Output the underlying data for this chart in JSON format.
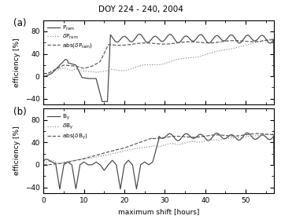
{
  "title": "DOY 224 - 240, 2004",
  "xlabel": "maximum shift [hours]",
  "ylabel": "efficiency [%]",
  "xlim": [
    0,
    57
  ],
  "ylim_a": [
    -50,
    100
  ],
  "ylim_b": [
    -50,
    100
  ],
  "yticks": [
    -40,
    0,
    40,
    80
  ],
  "xticks": [
    0,
    10,
    20,
    30,
    40,
    50
  ],
  "color_solid": "#444444",
  "color_dotted": "#888888",
  "color_dashed": "#555555",
  "panel_labels": [
    "(a)",
    "(b)"
  ]
}
